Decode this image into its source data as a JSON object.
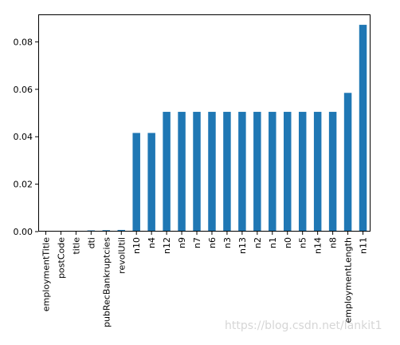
{
  "chart_data": {
    "type": "bar",
    "categories": [
      "employmentTitle",
      "postCode",
      "title",
      "dti",
      "pubRecBankruptcies",
      "revolUtil",
      "n10",
      "n4",
      "n12",
      "n9",
      "n7",
      "n6",
      "n3",
      "n13",
      "n2",
      "n1",
      "n0",
      "n5",
      "n14",
      "n8",
      "employmentLength",
      "n11"
    ],
    "values": [
      0.0,
      0.0,
      0.0,
      0.0005,
      0.0006,
      0.0007,
      0.0416,
      0.0416,
      0.0505,
      0.0505,
      0.0505,
      0.0505,
      0.0505,
      0.0505,
      0.0505,
      0.0505,
      0.0505,
      0.0505,
      0.0505,
      0.0505,
      0.0585,
      0.0872
    ],
    "yticks": [
      "0.00",
      "0.02",
      "0.04",
      "0.06",
      "0.08"
    ],
    "ylim": [
      0,
      0.0916
    ],
    "color": "#1f77b4",
    "grid": false
  },
  "watermark": "https://blog.csdn.net/lankit1"
}
